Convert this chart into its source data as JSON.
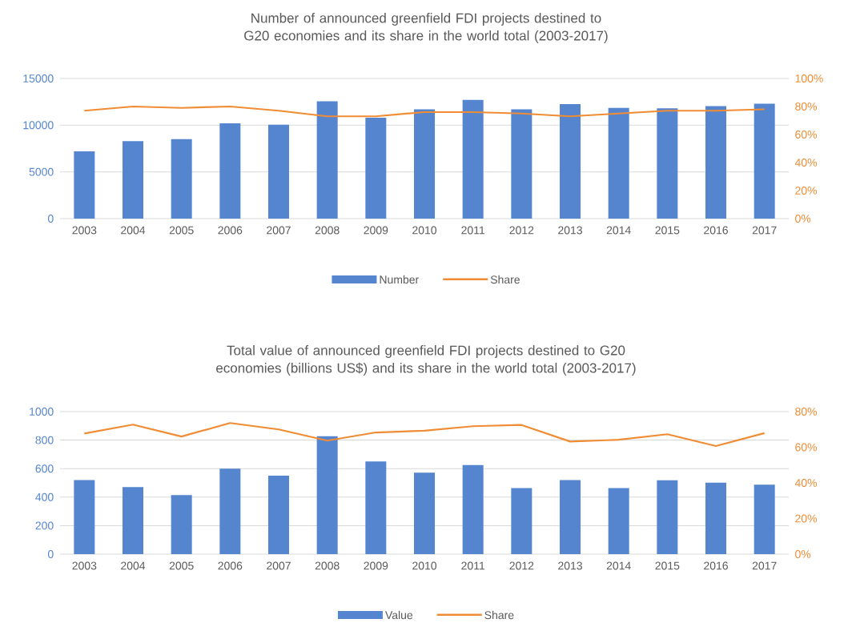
{
  "chart_data": [
    {
      "type": "bar",
      "title": "Number of announced greenfield FDI projects destined to G20 economies and its share in the world total (2003-2017)",
      "categories": [
        "2003",
        "2004",
        "2005",
        "2006",
        "2007",
        "2008",
        "2009",
        "2010",
        "2011",
        "2012",
        "2013",
        "2014",
        "2015",
        "2016",
        "2017"
      ],
      "series": [
        {
          "name": "Number",
          "color": "#5585cf",
          "values": [
            7200,
            8300,
            8500,
            10200,
            10050,
            12550,
            10800,
            11700,
            12700,
            11700,
            12250,
            11850,
            11800,
            12050,
            12300
          ]
        },
        {
          "name": "Share",
          "type": "line",
          "axis": "y2",
          "color": "#f08c34",
          "values": [
            77,
            80,
            79,
            80,
            77,
            73,
            73,
            76,
            76,
            75,
            73,
            75,
            77,
            77,
            78
          ]
        }
      ],
      "ylim": [
        0,
        15000
      ],
      "yticks": [
        0,
        5000,
        10000,
        15000
      ],
      "y2lim": [
        0,
        100
      ],
      "y2ticks": [
        {
          "value": 0,
          "label": "0%"
        },
        {
          "value": 20,
          "label": "20%"
        },
        {
          "value": 40,
          "label": "40%"
        },
        {
          "value": 60,
          "label": "60%"
        },
        {
          "value": 80,
          "label": "80%"
        },
        {
          "value": 100,
          "label": "100%"
        }
      ],
      "grid": "y",
      "legend": "bottom"
    },
    {
      "type": "bar",
      "title": "Total value of announced greenfield FDI projects destined to G20 economies (billions US$) and its share in the world total (2003-2017)",
      "categories": [
        "2003",
        "2004",
        "2005",
        "2006",
        "2007",
        "2008",
        "2009",
        "2010",
        "2011",
        "2012",
        "2013",
        "2014",
        "2015",
        "2016",
        "2017"
      ],
      "series": [
        {
          "name": "Value",
          "color": "#5585cf",
          "values": [
            520,
            470,
            415,
            600,
            550,
            827,
            650,
            571,
            625,
            463,
            520,
            463,
            518,
            502,
            488
          ]
        },
        {
          "name": "Share",
          "type": "line",
          "axis": "y2",
          "color": "#f08c34",
          "values": [
            67.7,
            72.7,
            66,
            73.6,
            70,
            63.7,
            68.3,
            69.3,
            71.8,
            72.5,
            63.2,
            64.2,
            67.3,
            60.7,
            67.9
          ]
        }
      ],
      "ylim": [
        0,
        1000
      ],
      "yticks": [
        0,
        200,
        400,
        600,
        800,
        1000
      ],
      "y2lim": [
        0,
        80
      ],
      "y2ticks": [
        {
          "value": 0,
          "label": "0%"
        },
        {
          "value": 20,
          "label": "20%"
        },
        {
          "value": 40,
          "label": "40%"
        },
        {
          "value": 60,
          "label": "60%"
        },
        {
          "value": 80,
          "label": "80%"
        }
      ],
      "grid": "y",
      "legend": "bottom"
    }
  ]
}
